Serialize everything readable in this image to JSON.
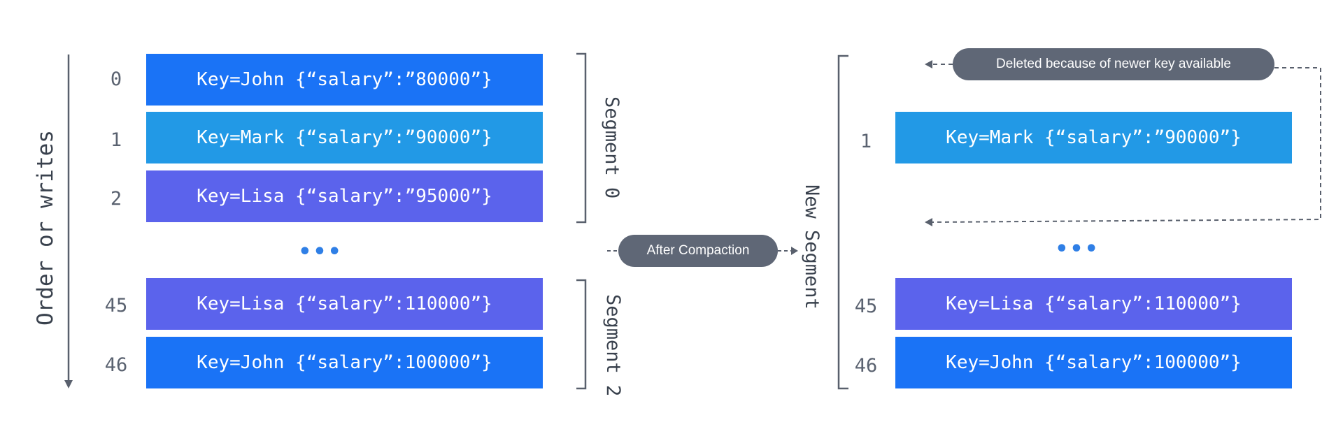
{
  "axis": {
    "label": "Order or writes"
  },
  "left": {
    "segments": [
      {
        "label": "Segment 0"
      },
      {
        "label": "Segment 2"
      }
    ],
    "records": [
      {
        "offset": "0",
        "text": "Key=John {“salary”:”80000”}"
      },
      {
        "offset": "1",
        "text": "Key=Mark {“salary”:”90000”}"
      },
      {
        "offset": "2",
        "text": "Key=Lisa {“salary”:”95000”}"
      },
      {
        "offset": "45",
        "text": "Key=Lisa {“salary”:110000”}"
      },
      {
        "offset": "46",
        "text": "Key=John {“salary”:100000”}"
      }
    ],
    "ellipsis": "•••"
  },
  "compaction": {
    "label": "After Compaction"
  },
  "right": {
    "segment_label": "New Segment",
    "note": "Deleted because of newer key available",
    "records": [
      {
        "offset": "1",
        "text": "Key=Mark {“salary”:”90000”}"
      },
      {
        "offset": "45",
        "text": "Key=Lisa {“salary”:110000”}"
      },
      {
        "offset": "46",
        "text": "Key=John {“salary”:100000”}"
      }
    ],
    "ellipsis": "•••"
  },
  "colors": {
    "blue": "#1a73f6",
    "sky": "#2299e6",
    "indigo": "#5b63ec",
    "pill": "#5f6776",
    "line": "#59606d"
  }
}
